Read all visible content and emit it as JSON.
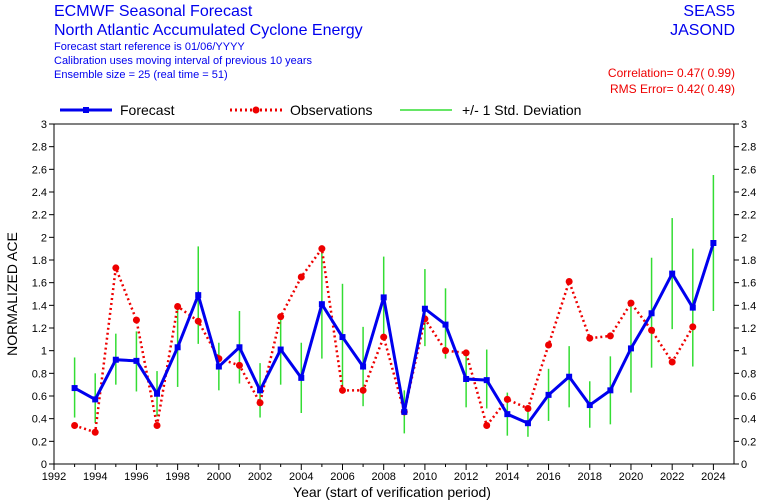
{
  "header": {
    "title_line1": "ECMWF Seasonal Forecast",
    "title_line2": "North Atlantic Accumulated Cyclone Energy",
    "info_line1": "Forecast start reference is 01/06/YYYY",
    "info_line2": "Calibration uses moving interval of previous 10 years",
    "info_line3": "Ensemble size =  25   (real time = 51)",
    "system": "SEAS5",
    "season": "JASOND",
    "correlation": "Correlation= 0.47( 0.99)",
    "rms_error": "RMS Error= 0.42( 0.49)"
  },
  "colors": {
    "forecast": "#0000ee",
    "observations": "#ee0000",
    "std_dev": "#33dd33",
    "title": "#0000ee"
  },
  "chart_data": {
    "type": "line",
    "xlabel": "Year (start of verification period)",
    "ylabel": "NORMALIZED ACE",
    "xlim": [
      1992,
      2025
    ],
    "ylim": [
      0,
      3
    ],
    "x_ticks": [
      1992,
      1994,
      1996,
      1998,
      2000,
      2002,
      2004,
      2006,
      2008,
      2010,
      2012,
      2014,
      2016,
      2018,
      2020,
      2022,
      2024
    ],
    "y_ticks": [
      0,
      0.2,
      0.4,
      0.6,
      0.8,
      1,
      1.2,
      1.4,
      1.6,
      1.8,
      2,
      2.2,
      2.4,
      2.6,
      2.8,
      3
    ],
    "legend": [
      "Forecast",
      "Observations",
      "+/- 1 Std. Deviation"
    ],
    "legend_position": "top",
    "years": [
      1993,
      1994,
      1995,
      1996,
      1997,
      1998,
      1999,
      2000,
      2001,
      2002,
      2003,
      2004,
      2005,
      2006,
      2007,
      2008,
      2009,
      2010,
      2011,
      2012,
      2013,
      2014,
      2015,
      2016,
      2017,
      2018,
      2019,
      2020,
      2021,
      2022,
      2023,
      2024
    ],
    "series": [
      {
        "name": "Forecast",
        "values": [
          0.67,
          0.57,
          0.92,
          0.91,
          0.62,
          1.03,
          1.49,
          0.86,
          1.03,
          0.65,
          1.01,
          0.76,
          1.41,
          1.12,
          0.86,
          1.47,
          0.46,
          1.37,
          1.23,
          0.75,
          0.74,
          0.44,
          0.36,
          0.61,
          0.77,
          0.52,
          0.65,
          1.02,
          1.33,
          1.68,
          1.38,
          1.95
        ]
      },
      {
        "name": "Observations",
        "values": [
          0.34,
          0.28,
          1.73,
          1.27,
          0.34,
          1.39,
          1.26,
          0.93,
          0.87,
          0.54,
          1.3,
          1.65,
          1.9,
          0.65,
          0.65,
          1.12,
          0.46,
          1.28,
          1.0,
          0.98,
          0.34,
          0.57,
          0.49,
          1.05,
          1.61,
          1.11,
          1.13,
          1.42,
          1.18,
          0.9,
          1.21,
          null
        ]
      },
      {
        "name": "+/- 1 Std. Deviation",
        "low": [
          0.41,
          0.36,
          0.7,
          0.64,
          0.42,
          0.68,
          1.06,
          0.65,
          0.71,
          0.41,
          0.7,
          0.45,
          0.93,
          0.66,
          0.51,
          1.11,
          0.27,
          1.04,
          0.93,
          0.5,
          0.49,
          0.25,
          0.24,
          0.38,
          0.5,
          0.32,
          0.35,
          0.63,
          0.85,
          1.19,
          0.86,
          1.35
        ],
        "high": [
          0.94,
          0.8,
          1.15,
          1.17,
          0.82,
          1.37,
          1.92,
          1.07,
          1.35,
          0.89,
          1.31,
          1.07,
          1.88,
          1.59,
          1.21,
          1.83,
          0.65,
          1.72,
          1.55,
          1.0,
          1.01,
          0.63,
          0.49,
          0.84,
          1.04,
          0.73,
          0.95,
          1.41,
          1.82,
          2.17,
          1.9,
          2.55
        ]
      }
    ]
  }
}
